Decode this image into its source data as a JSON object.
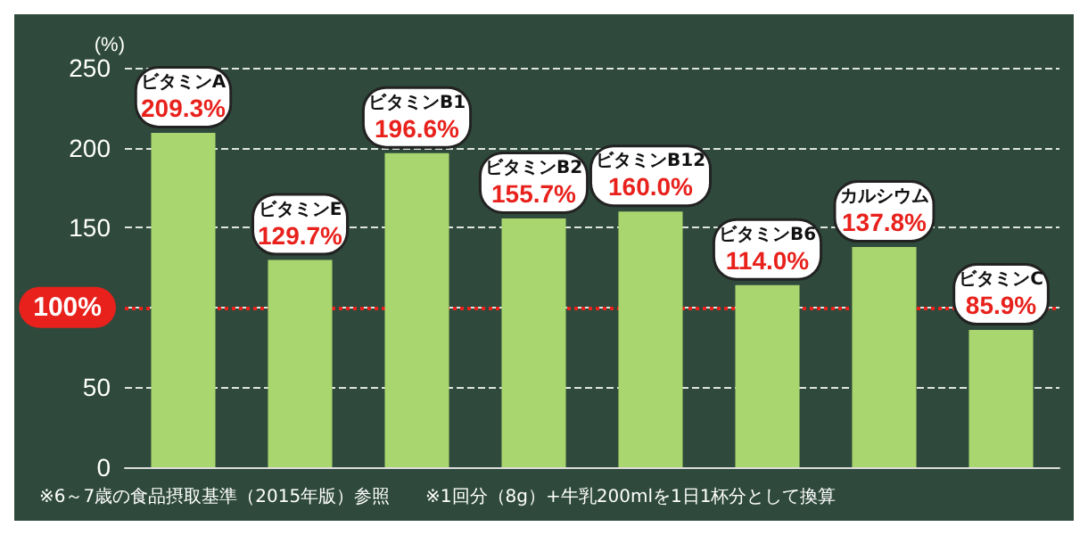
{
  "chart_data": {
    "type": "bar",
    "ylabel": "(%)",
    "categories": [
      "ビタミンA",
      "ビタミンE",
      "ビタミンB1",
      "ビタミンB2",
      "ビタミンB12",
      "ビタミンB6",
      "カルシウム",
      "ビタミンC"
    ],
    "values": [
      209.3,
      129.7,
      196.6,
      155.7,
      160.0,
      114.0,
      137.8,
      85.9
    ],
    "value_labels": [
      "209.3%",
      "129.7%",
      "196.6%",
      "155.7%",
      "160.0%",
      "114.0%",
      "137.8%",
      "85.9%"
    ],
    "color": "#a9d66e",
    "ylim": [
      0,
      250
    ],
    "yticks": [
      0,
      50,
      {
        "value": 100,
        "label": null
      },
      150,
      200,
      250
    ],
    "grid": "y",
    "ref_lines": [
      {
        "axis": "y",
        "value": 100,
        "label": "100%",
        "color": "#e8211c",
        "line_style": "dotted"
      }
    ],
    "annotations": [
      "※6～7歳の食品摂取基準（2015年版）参照",
      "※1回分（8g）+牛乳200mlを1日1杯分として換算"
    ]
  }
}
